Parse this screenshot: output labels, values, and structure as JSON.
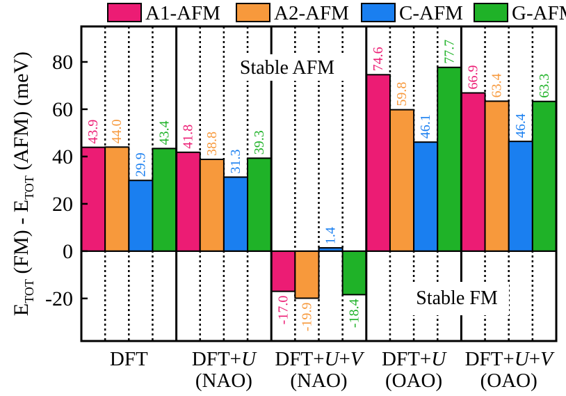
{
  "chart_data": {
    "type": "bar",
    "ylabel_parts": {
      "e1": "E",
      "sub1": "TOT",
      "mid": " (FM) - E",
      "sub2": "TOT",
      "end": " (AFM) (meV)"
    },
    "ylim": [
      -38,
      95
    ],
    "yticks": [
      -20,
      0,
      20,
      40,
      60,
      80
    ],
    "ytick_labels": [
      "-20",
      "0",
      "20",
      "40",
      "60",
      "80"
    ],
    "legend": [
      {
        "name": "A1-AFM",
        "color": "#ec1c74"
      },
      {
        "name": "A2-AFM",
        "color": "#f7993c"
      },
      {
        "name": "C-AFM",
        "color": "#1a7ff0"
      },
      {
        "name": "G-AFM",
        "color": "#1fb228"
      }
    ],
    "groups": [
      {
        "line1": "DFT",
        "line2": "",
        "values": [
          43.9,
          44.0,
          29.9,
          43.4
        ],
        "labels": [
          "43.9",
          "44.0",
          "29.9",
          "43.4"
        ]
      },
      {
        "line1": "DFT+U",
        "line2": "(NAO)",
        "values": [
          41.8,
          38.8,
          31.3,
          39.3
        ],
        "labels": [
          "41.8",
          "38.8",
          "31.3",
          "39.3"
        ]
      },
      {
        "line1": "DFT+U+V",
        "line2": "(NAO)",
        "values": [
          -17.0,
          -19.9,
          1.4,
          -18.4
        ],
        "labels": [
          "-17.0",
          "-19.9",
          "1.4",
          "-18.4"
        ]
      },
      {
        "line1": "DFT+U",
        "line2": "(OAO)",
        "values": [
          74.6,
          59.8,
          46.1,
          77.7
        ],
        "labels": [
          "74.6",
          "59.8",
          "46.1",
          "77.7"
        ]
      },
      {
        "line1": "DFT+U+V",
        "line2": "(OAO)",
        "values": [
          66.9,
          63.4,
          46.4,
          63.3
        ],
        "labels": [
          "66.9",
          "63.4",
          "46.4",
          "63.3"
        ]
      }
    ],
    "annotations": {
      "stable_afm": "Stable AFM",
      "stable_fm": "Stable FM"
    }
  }
}
